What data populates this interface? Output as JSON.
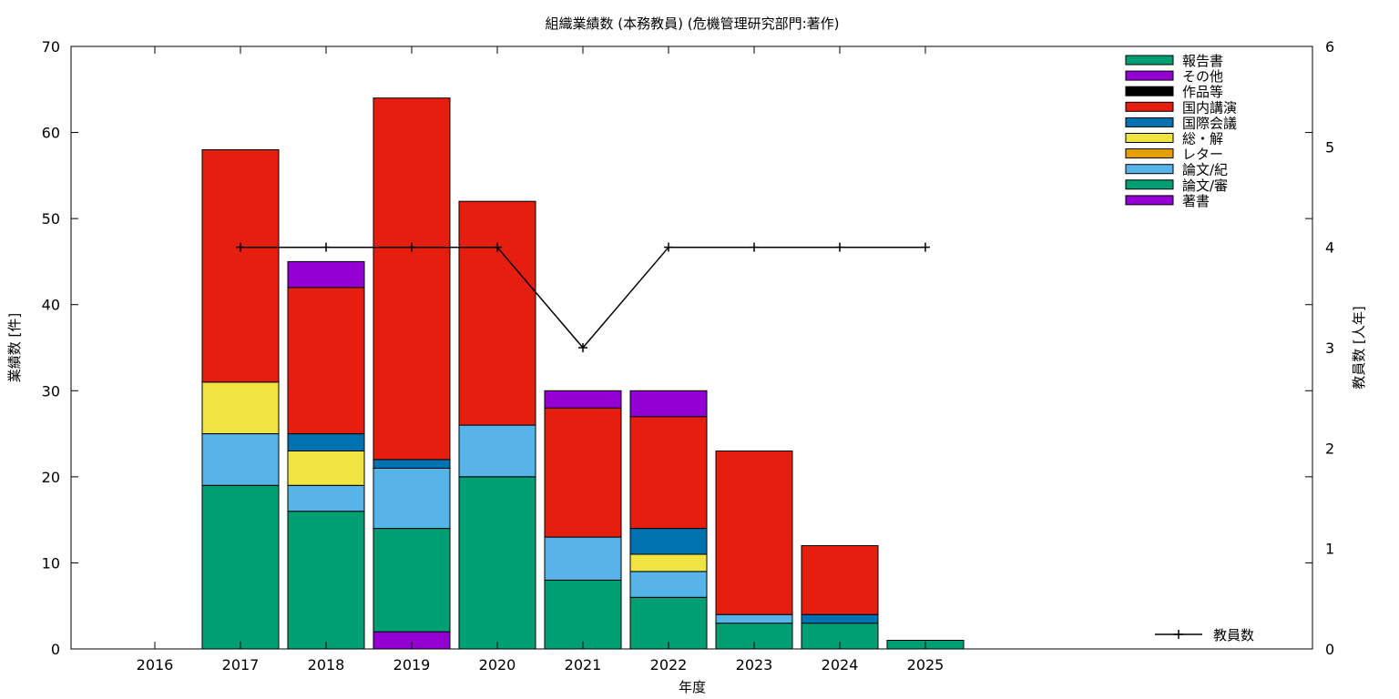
{
  "chart_data": {
    "type": "bar",
    "stacked": true,
    "title": "組織業績数 (本務教員) (危機管理研究部門:著作)",
    "xlabel": "年度",
    "ylabel": "業績数 [件]",
    "y2label": "教員数 [人年]",
    "categories": [
      "2016",
      "2017",
      "2018",
      "2019",
      "2020",
      "2021",
      "2022",
      "2023",
      "2024",
      "2025"
    ],
    "ylim": [
      0,
      70
    ],
    "y2lim": [
      0,
      6
    ],
    "yticks": [
      0,
      10,
      20,
      30,
      40,
      50,
      60,
      70
    ],
    "y2ticks": [
      0,
      1,
      2,
      3,
      4,
      5,
      6
    ],
    "grid": false,
    "legend_position": "top-right",
    "series": [
      {
        "name": "著書",
        "color": "#9400d3",
        "values": [
          0,
          0,
          0,
          2,
          0,
          0,
          0,
          0,
          0,
          0
        ]
      },
      {
        "name": "論文/審",
        "color": "#009e73",
        "values": [
          0,
          19,
          16,
          12,
          20,
          8,
          6,
          3,
          3,
          1
        ]
      },
      {
        "name": "論文/紀",
        "color": "#56b4e9",
        "values": [
          0,
          6,
          3,
          7,
          6,
          5,
          3,
          1,
          0,
          0
        ]
      },
      {
        "name": "レター",
        "color": "#e69f00",
        "values": [
          0,
          0,
          0,
          0,
          0,
          0,
          0,
          0,
          0,
          0
        ]
      },
      {
        "name": "総・解",
        "color": "#f0e442",
        "values": [
          0,
          6,
          4,
          0,
          0,
          0,
          2,
          0,
          0,
          0
        ]
      },
      {
        "name": "国際会議",
        "color": "#0072b2",
        "values": [
          0,
          0,
          2,
          1,
          0,
          0,
          3,
          0,
          1,
          0
        ]
      },
      {
        "name": "国内講演",
        "color": "#e51e10",
        "values": [
          0,
          27,
          17,
          42,
          26,
          15,
          13,
          19,
          8,
          0
        ]
      },
      {
        "name": "作品等",
        "color": "#000000",
        "values": [
          0,
          0,
          0,
          0,
          0,
          0,
          0,
          0,
          0,
          0
        ]
      },
      {
        "name": "その他",
        "color": "#9400d3",
        "values": [
          0,
          0,
          3,
          0,
          0,
          2,
          3,
          0,
          0,
          0
        ]
      },
      {
        "name": "報告書",
        "color": "#009e73",
        "values": [
          0,
          0,
          0,
          0,
          0,
          0,
          0,
          0,
          0,
          0
        ]
      }
    ],
    "line_series": {
      "name": "教員数",
      "color": "#000000",
      "axis": "y2",
      "categories": [
        "2017",
        "2018",
        "2019",
        "2020",
        "2021",
        "2022",
        "2023",
        "2024",
        "2025"
      ],
      "values": [
        4,
        4,
        4,
        4,
        3,
        4,
        4,
        4,
        4
      ]
    }
  }
}
